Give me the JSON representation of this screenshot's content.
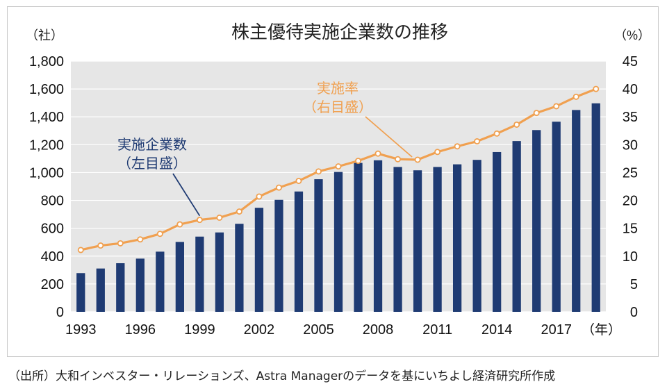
{
  "chart_data": {
    "type": "bar+line",
    "title": "株主優待実施企業数の推移",
    "y_left_unit": "（社）",
    "y_right_unit": "（%）",
    "x_unit": "（年）",
    "ylim_left": [
      0,
      1800
    ],
    "ylim_right": [
      0,
      45
    ],
    "y_left_ticks": [
      "0",
      "200",
      "400",
      "600",
      "800",
      "1,000",
      "1,200",
      "1,400",
      "1,600",
      "1,800"
    ],
    "y_right_ticks": [
      "0",
      "5",
      "10",
      "15",
      "20",
      "25",
      "30",
      "35",
      "40",
      "45"
    ],
    "x_tick_labels": [
      "1993",
      "1996",
      "1999",
      "2002",
      "2005",
      "2008",
      "2011",
      "2014",
      "2017"
    ],
    "years": [
      1993,
      1994,
      1995,
      1996,
      1997,
      1998,
      1999,
      2000,
      2001,
      2002,
      2003,
      2004,
      2005,
      2006,
      2007,
      2008,
      2009,
      2010,
      2011,
      2012,
      2013,
      2014,
      2015,
      2016,
      2017,
      2018,
      2019
    ],
    "series": [
      {
        "name": "実施企業数",
        "axis": "left",
        "kind": "bar",
        "color": "#1f3b73",
        "values": [
          278,
          311,
          349,
          382,
          432,
          502,
          540,
          570,
          632,
          747,
          804,
          864,
          952,
          1004,
          1069,
          1088,
          1040,
          1016,
          1040,
          1059,
          1091,
          1147,
          1226,
          1305,
          1365,
          1449,
          1497
        ]
      },
      {
        "name": "実施率",
        "axis": "right",
        "kind": "line",
        "color": "#f0a050",
        "values": [
          11.1,
          11.9,
          12.3,
          13.0,
          14.0,
          15.7,
          16.5,
          16.9,
          18.0,
          20.7,
          22.3,
          23.5,
          25.2,
          26.1,
          27.1,
          28.4,
          27.4,
          27.3,
          28.7,
          29.7,
          30.6,
          32.0,
          33.6,
          35.7,
          36.9,
          38.6,
          40.0
        ]
      }
    ],
    "annotations": [
      {
        "text": "実施企業数",
        "sub": "（左目盛）"
      },
      {
        "text": "実施率",
        "sub": "（右目盛）"
      }
    ]
  },
  "source": "（出所）大和インベスター・リレーションズ、Astra Managerのデータを基にいちよし経済研究所作成"
}
